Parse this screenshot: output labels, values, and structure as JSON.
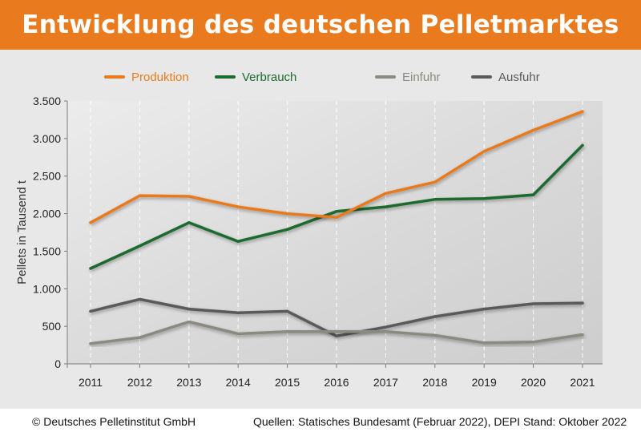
{
  "header": {
    "title": "Entwicklung des deutschen Pelletmarktes"
  },
  "footer": {
    "copyright": "© Deutsches Pelletinstitut GmbH",
    "sources": "Quellen: Statisches Bundesamt (Februar 2022), DEPI Stand: Oktober 2022"
  },
  "chart_data": {
    "type": "line",
    "title": "Entwicklung des deutschen Pelletmarktes",
    "ylabel": "Pellets in Tausend t",
    "xlabel": "",
    "x": [
      2011,
      2012,
      2013,
      2014,
      2015,
      2016,
      2017,
      2018,
      2019,
      2020,
      2021
    ],
    "ylim": [
      0,
      3500
    ],
    "yticks": [
      0,
      500,
      1000,
      1500,
      2000,
      2500,
      3000,
      3500
    ],
    "ytick_labels": [
      "0",
      "500",
      "1.000",
      "1.500",
      "2.000",
      "2.500",
      "3.000",
      "3.500"
    ],
    "grid": "vertical dashed",
    "legend_position": "top",
    "series": [
      {
        "name": "Produktion",
        "color": "#e97a1e",
        "values": [
          1880,
          2240,
          2230,
          2090,
          2000,
          1950,
          2270,
          2420,
          2830,
          3110,
          3360
        ]
      },
      {
        "name": "Verbrauch",
        "color": "#1b6b2e",
        "values": [
          1270,
          1570,
          1880,
          1630,
          1790,
          2030,
          2090,
          2190,
          2200,
          2250,
          2910
        ]
      },
      {
        "name": "Einfuhr",
        "color": "#8a8a80",
        "values": [
          270,
          350,
          560,
          400,
          430,
          430,
          430,
          380,
          280,
          290,
          390
        ]
      },
      {
        "name": "Ausfuhr",
        "color": "#5a5a5c",
        "values": [
          700,
          860,
          730,
          680,
          700,
          370,
          490,
          630,
          730,
          800,
          810
        ]
      }
    ]
  }
}
